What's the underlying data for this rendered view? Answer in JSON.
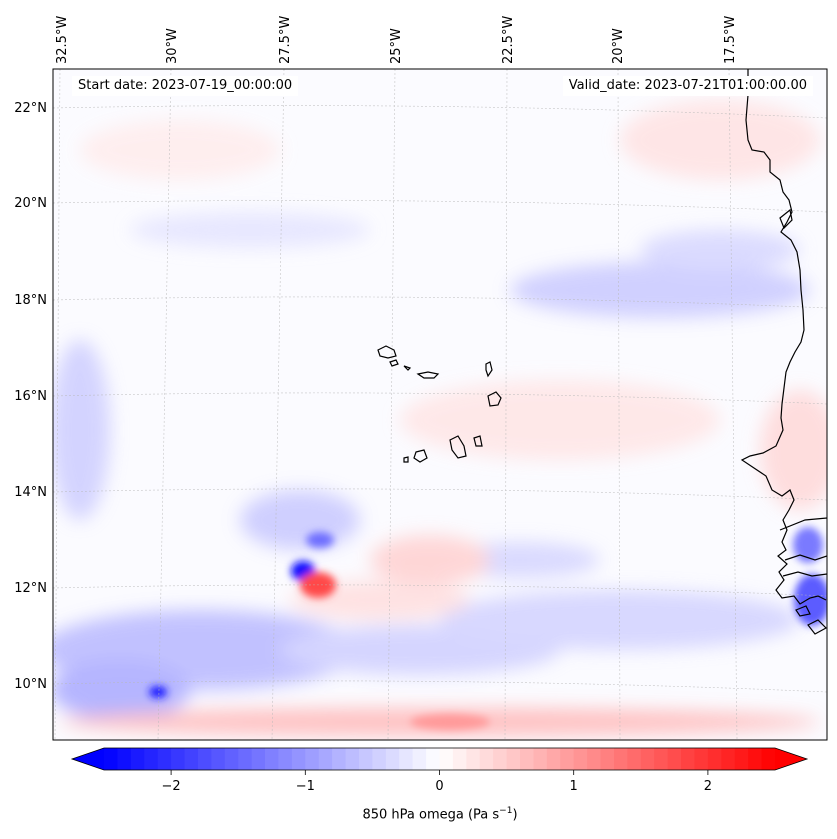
{
  "map": {
    "start_date_text": "Start date: 2023-07-19_00:00:00",
    "valid_date_text": "Valid_date: 2023-07-21T01:00:00.00",
    "lon_labels": [
      "32.5°W",
      "30°W",
      "27.5°W",
      "25°W",
      "22.5°W",
      "20°W",
      "17.5°W"
    ],
    "lat_labels": [
      "22°N",
      "20°N",
      "18°N",
      "16°N",
      "14°N",
      "12°N",
      "10°N"
    ],
    "field": "850 hPa omega",
    "extent": {
      "lon_min": -32.7,
      "lon_max": -15.5,
      "lat_min": 8.8,
      "lat_max": 22.8
    }
  },
  "colorbar": {
    "title_prefix": "850 hPa omega (Pa s",
    "title_exp": "−1",
    "title_suffix": ")",
    "ticks": [
      "−2",
      "−1",
      "0",
      "1",
      "2"
    ],
    "tick_values": [
      -2,
      -1,
      0,
      1,
      2
    ],
    "vmin": -2.5,
    "vmax": 2.5,
    "cmap": "bwr",
    "extend": "both",
    "colors": {
      "low": "#0000ff",
      "mid": "#ffffff",
      "high": "#ff0000"
    }
  }
}
